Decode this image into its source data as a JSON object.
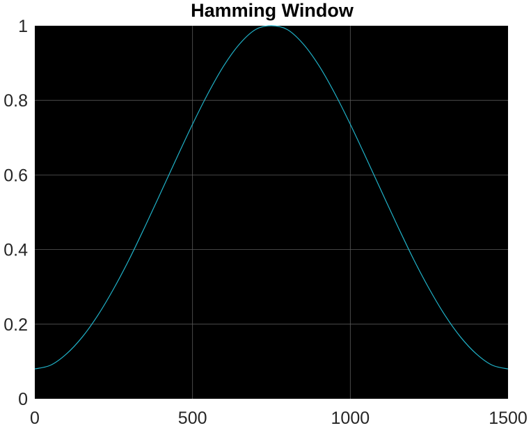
{
  "chart_data": {
    "type": "line",
    "title": "Hamming Window",
    "xlabel": "",
    "ylabel": "",
    "xlim": [
      0,
      1500
    ],
    "ylim": [
      0,
      1
    ],
    "x_ticks": [
      0,
      500,
      1000,
      1500
    ],
    "y_ticks": [
      0,
      0.2,
      0.4,
      0.6,
      0.8,
      1
    ],
    "x_tick_labels": [
      "0",
      "500",
      "1000",
      "1500"
    ],
    "y_tick_labels": [
      "0",
      "0.2",
      "0.4",
      "0.6",
      "0.8",
      "1"
    ],
    "grid": true,
    "legend": "none",
    "background_color": "#000000",
    "grid_color": "#5a5a5a",
    "series": [
      {
        "color": "#20b2c8",
        "x": [
          0,
          50,
          100,
          150,
          200,
          250,
          300,
          350,
          400,
          450,
          500,
          550,
          600,
          650,
          700,
          750,
          800,
          850,
          900,
          950,
          1000,
          1050,
          1100,
          1150,
          1200,
          1250,
          1300,
          1350,
          1400,
          1450,
          1500
        ],
        "y": [
          0.08,
          0.09,
          0.12,
          0.165,
          0.224,
          0.295,
          0.375,
          0.463,
          0.554,
          0.646,
          0.736,
          0.82,
          0.894,
          0.952,
          0.99,
          1.0,
          0.99,
          0.952,
          0.894,
          0.82,
          0.736,
          0.646,
          0.554,
          0.463,
          0.375,
          0.295,
          0.224,
          0.165,
          0.12,
          0.09,
          0.08
        ]
      }
    ]
  }
}
